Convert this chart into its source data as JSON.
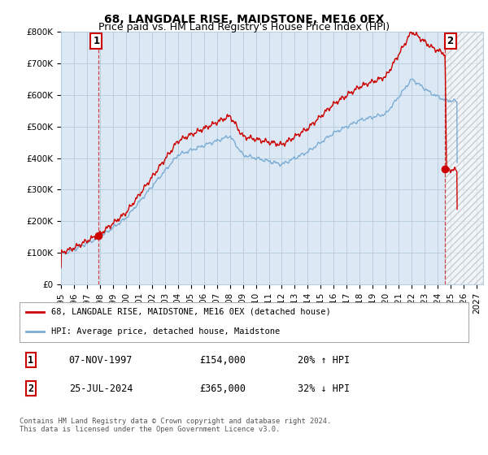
{
  "title": "68, LANGDALE RISE, MAIDSTONE, ME16 0EX",
  "subtitle": "Price paid vs. HM Land Registry's House Price Index (HPI)",
  "ylim": [
    0,
    800000
  ],
  "xlim_start": 1995.0,
  "xlim_end": 2027.5,
  "yticks": [
    0,
    100000,
    200000,
    300000,
    400000,
    500000,
    600000,
    700000,
    800000
  ],
  "ytick_labels": [
    "£0",
    "£100K",
    "£200K",
    "£300K",
    "£400K",
    "£500K",
    "£600K",
    "£700K",
    "£800K"
  ],
  "xticks": [
    1995,
    1996,
    1997,
    1998,
    1999,
    2000,
    2001,
    2002,
    2003,
    2004,
    2005,
    2006,
    2007,
    2008,
    2009,
    2010,
    2011,
    2012,
    2013,
    2014,
    2015,
    2016,
    2017,
    2018,
    2019,
    2020,
    2021,
    2022,
    2023,
    2024,
    2025,
    2026,
    2027
  ],
  "red_line_color": "#cc0000",
  "blue_line_color": "#7dadd4",
  "chart_bg_color": "#dce9f5",
  "hatch_color": "#cc0000",
  "point1_x": 1997.86,
  "point1_y": 154000,
  "point2_x": 2024.57,
  "point2_y": 365000,
  "legend_label_red": "68, LANGDALE RISE, MAIDSTONE, ME16 0EX (detached house)",
  "legend_label_blue": "HPI: Average price, detached house, Maidstone",
  "table_row1": [
    "1",
    "07-NOV-1997",
    "£154,000",
    "20% ↑ HPI"
  ],
  "table_row2": [
    "2",
    "25-JUL-2024",
    "£365,000",
    "32% ↓ HPI"
  ],
  "footer": "Contains HM Land Registry data © Crown copyright and database right 2024.\nThis data is licensed under the Open Government Licence v3.0.",
  "bg_color": "#ffffff",
  "grid_color": "#b8cfe0",
  "title_fontsize": 10,
  "subtitle_fontsize": 9,
  "tick_fontsize": 7.5
}
